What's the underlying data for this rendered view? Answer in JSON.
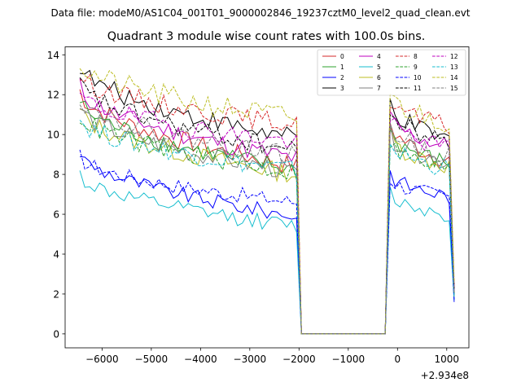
{
  "chart_data": {
    "type": "line",
    "suptitle": "Data file: modeM0/AS1C04_001T01_9000002846_19237cztM0_level2_quad_clean.evt",
    "title": "Quadrant 3 module wise count rates with 100.0s bins.",
    "xlabel": "",
    "ylabel": "",
    "x_offset_label": "+2.934e8",
    "xlim": [
      -6750,
      1450
    ],
    "ylim": [
      -0.7,
      14.4
    ],
    "x_ticks": [
      -6000,
      -5000,
      -4000,
      -3000,
      -2000,
      -1000,
      0,
      1000
    ],
    "x_tick_labels": [
      "−6000",
      "−5000",
      "−4000",
      "−3000",
      "−2000",
      "−1000",
      "0",
      "1000"
    ],
    "y_ticks": [
      0,
      2,
      4,
      6,
      8,
      10,
      12,
      14
    ],
    "y_tick_labels": [
      "0",
      "2",
      "4",
      "6",
      "8",
      "10",
      "12",
      "14"
    ],
    "legend_position": "top-right",
    "grid": false,
    "bin_seconds": 100.0,
    "segment_a": {
      "x_start": -6450,
      "x_end": -2050,
      "step": 100
    },
    "gap": {
      "x_start": -1950,
      "x_end": -250,
      "value": 0.0
    },
    "segment_b": {
      "x_start": -150,
      "x_end": 1050,
      "step": 100
    },
    "series": [
      {
        "name": "0",
        "color": "#d62728",
        "dashed": false,
        "a_start": 12.2,
        "a_end": 8.4,
        "a_var": 0.5,
        "b_peak": 10.6,
        "b_end": 8.7,
        "b_last": 2.0
      },
      {
        "name": "1",
        "color": "#2ca02c",
        "dashed": false,
        "a_start": 11.7,
        "a_end": 8.2,
        "a_var": 0.5,
        "b_peak": 10.2,
        "b_end": 8.5,
        "b_last": 2.0
      },
      {
        "name": "2",
        "color": "#0000ff",
        "dashed": false,
        "a_start": 9.1,
        "a_end": 5.9,
        "a_var": 0.4,
        "b_peak": 8.1,
        "b_end": 6.9,
        "b_last": 1.6
      },
      {
        "name": "3",
        "color": "#000000",
        "dashed": false,
        "a_start": 13.5,
        "a_end": 9.8,
        "a_var": 0.5,
        "b_peak": 11.6,
        "b_end": 9.7,
        "b_last": 2.3
      },
      {
        "name": "4",
        "color": "#bf00bf",
        "dashed": false,
        "a_start": 12.4,
        "a_end": 8.8,
        "a_var": 0.5,
        "b_peak": 10.9,
        "b_end": 9.4,
        "b_last": 2.1
      },
      {
        "name": "5",
        "color": "#17becf",
        "dashed": false,
        "a_start": 8.0,
        "a_end": 5.4,
        "a_var": 0.4,
        "b_peak": 7.1,
        "b_end": 6.0,
        "b_last": 1.7
      },
      {
        "name": "6",
        "color": "#bcbd22",
        "dashed": false,
        "a_start": 11.2,
        "a_end": 8.0,
        "a_var": 0.5,
        "b_peak": 10.0,
        "b_end": 8.4,
        "b_last": 1.9
      },
      {
        "name": "7",
        "color": "#7f7f7f",
        "dashed": false,
        "a_start": 11.4,
        "a_end": 8.1,
        "a_var": 0.5,
        "b_peak": 10.1,
        "b_end": 8.6,
        "b_last": 2.0
      },
      {
        "name": "8",
        "color": "#d62728",
        "dashed": true,
        "a_start": 13.0,
        "a_end": 10.5,
        "a_var": 0.5,
        "b_peak": 11.8,
        "b_end": 10.4,
        "b_last": 2.5
      },
      {
        "name": "9",
        "color": "#2ca02c",
        "dashed": true,
        "a_start": 11.0,
        "a_end": 8.1,
        "a_var": 0.5,
        "b_peak": 9.7,
        "b_end": 8.2,
        "b_last": 1.9
      },
      {
        "name": "10",
        "color": "#0000ff",
        "dashed": true,
        "a_start": 8.9,
        "a_end": 6.6,
        "a_var": 0.4,
        "b_peak": 7.8,
        "b_end": 6.9,
        "b_last": 1.7
      },
      {
        "name": "11",
        "color": "#000000",
        "dashed": true,
        "a_start": 12.6,
        "a_end": 9.2,
        "a_var": 0.5,
        "b_peak": 11.2,
        "b_end": 9.6,
        "b_last": 2.2
      },
      {
        "name": "12",
        "color": "#bf00bf",
        "dashed": true,
        "a_start": 12.0,
        "a_end": 9.6,
        "a_var": 0.5,
        "b_peak": 10.8,
        "b_end": 9.3,
        "b_last": 2.1
      },
      {
        "name": "13",
        "color": "#17becf",
        "dashed": true,
        "a_start": 10.8,
        "a_end": 8.2,
        "a_var": 0.5,
        "b_peak": 9.6,
        "b_end": 8.3,
        "b_last": 1.9
      },
      {
        "name": "14",
        "color": "#bcbd22",
        "dashed": true,
        "a_start": 13.6,
        "a_end": 10.8,
        "a_var": 0.6,
        "b_peak": 12.0,
        "b_end": 10.6,
        "b_last": 2.6
      },
      {
        "name": "15",
        "color": "#7f7f7f",
        "dashed": true,
        "a_start": 11.9,
        "a_end": 8.9,
        "a_var": 0.5,
        "b_peak": 10.5,
        "b_end": 9.0,
        "b_last": 2.1
      }
    ]
  }
}
